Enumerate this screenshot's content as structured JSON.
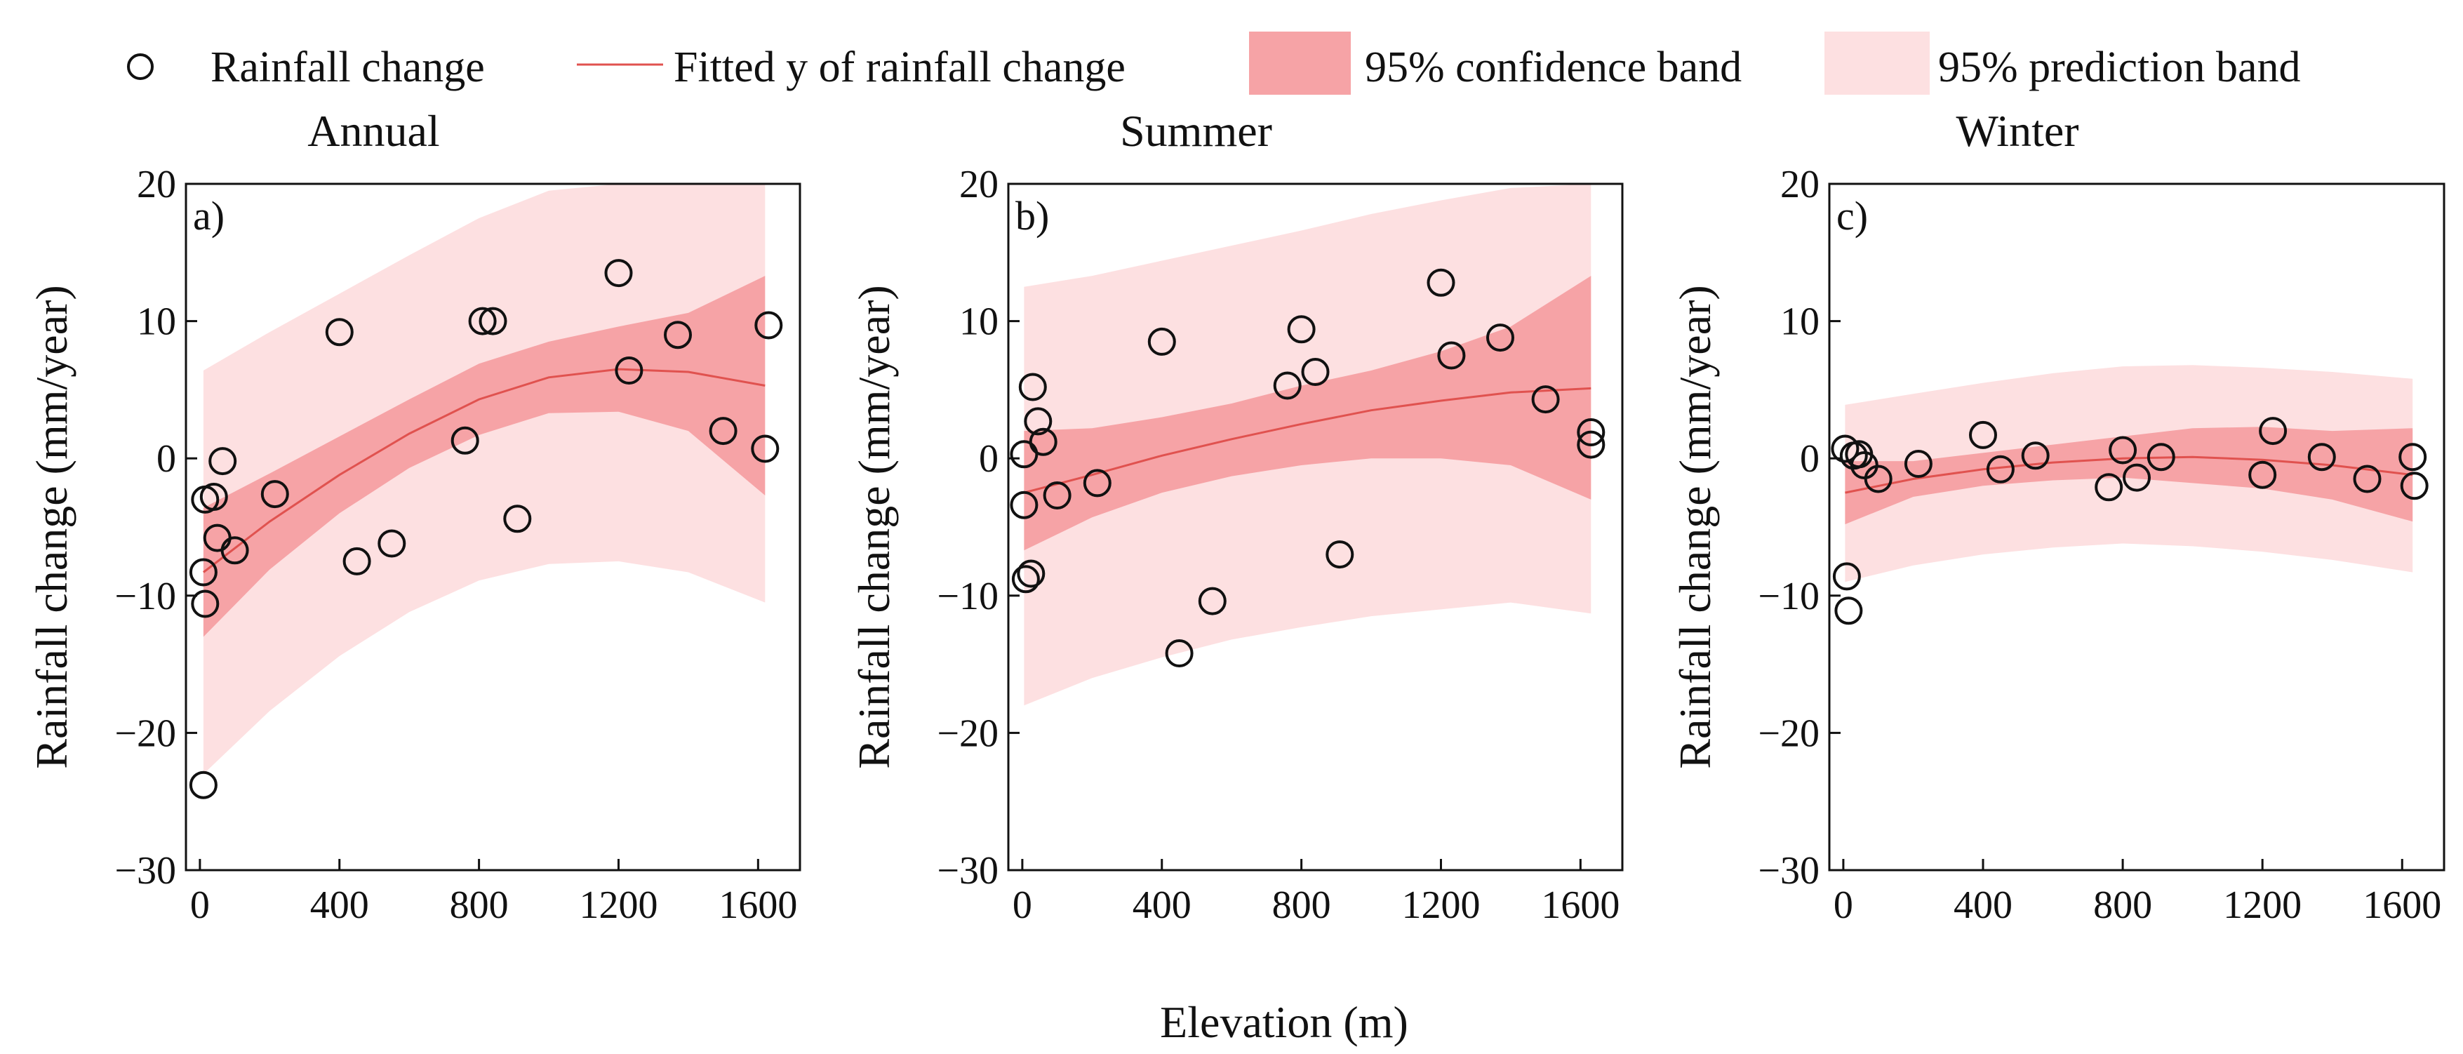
{
  "legend": {
    "points_label": "Rainfall change",
    "fit_label": "Fitted y of rainfall change",
    "confidence_label": "95% confidence band",
    "prediction_label": "95% prediction band"
  },
  "colors": {
    "fit": "#e0524f",
    "confidence": "#f6a3a6",
    "prediction": "#fde0e1",
    "marker": "#111111"
  },
  "xlabel": "Elevation (m)",
  "ylabel": "Rainfall change (mm/year)",
  "chart_data": [
    {
      "type": "scatter",
      "title": "Annual",
      "panel_label": "a)",
      "xlim": [
        -40,
        1720
      ],
      "ylim": [
        -30,
        20
      ],
      "xticks": [
        0,
        400,
        800,
        1200,
        1600
      ],
      "yticks": [
        -30,
        -20,
        -10,
        0,
        10,
        20
      ],
      "points": [
        [
          10,
          -23.8
        ],
        [
          10,
          -8.3
        ],
        [
          15,
          -10.6
        ],
        [
          15,
          -3.0
        ],
        [
          40,
          -2.8
        ],
        [
          50,
          -5.8
        ],
        [
          65,
          -0.2
        ],
        [
          100,
          -6.7
        ],
        [
          215,
          -2.6
        ],
        [
          400,
          9.2
        ],
        [
          450,
          -7.5
        ],
        [
          550,
          -6.2
        ],
        [
          760,
          1.3
        ],
        [
          810,
          10.0
        ],
        [
          840,
          10.0
        ],
        [
          910,
          -4.4
        ],
        [
          1200,
          13.5
        ],
        [
          1230,
          6.4
        ],
        [
          1370,
          9.0
        ],
        [
          1500,
          2.0
        ],
        [
          1620,
          0.7
        ],
        [
          1630,
          9.7
        ]
      ],
      "fit": [
        [
          10,
          -8.3
        ],
        [
          200,
          -4.6
        ],
        [
          400,
          -1.2
        ],
        [
          600,
          1.8
        ],
        [
          800,
          4.3
        ],
        [
          1000,
          5.9
        ],
        [
          1200,
          6.5
        ],
        [
          1400,
          6.3
        ],
        [
          1620,
          5.3
        ]
      ],
      "confidence": {
        "upper": [
          [
            10,
            -3.6
          ],
          [
            200,
            -1.1
          ],
          [
            400,
            1.6
          ],
          [
            600,
            4.3
          ],
          [
            800,
            6.9
          ],
          [
            1000,
            8.5
          ],
          [
            1200,
            9.6
          ],
          [
            1400,
            10.6
          ],
          [
            1620,
            13.3
          ]
        ],
        "lower": [
          [
            10,
            -13.0
          ],
          [
            200,
            -8.1
          ],
          [
            400,
            -4.0
          ],
          [
            600,
            -0.7
          ],
          [
            800,
            1.7
          ],
          [
            1000,
            3.3
          ],
          [
            1200,
            3.4
          ],
          [
            1400,
            2.0
          ],
          [
            1620,
            -2.7
          ]
        ]
      },
      "prediction": {
        "upper": [
          [
            10,
            6.4
          ],
          [
            200,
            9.2
          ],
          [
            400,
            12.0
          ],
          [
            600,
            14.8
          ],
          [
            800,
            17.5
          ],
          [
            1000,
            19.5
          ],
          [
            1200,
            20.0
          ],
          [
            1400,
            20.0
          ],
          [
            1620,
            20.0
          ]
        ],
        "lower": [
          [
            10,
            -23.0
          ],
          [
            200,
            -18.4
          ],
          [
            400,
            -14.4
          ],
          [
            600,
            -11.2
          ],
          [
            800,
            -8.9
          ],
          [
            1000,
            -7.7
          ],
          [
            1200,
            -7.5
          ],
          [
            1400,
            -8.3
          ],
          [
            1620,
            -10.5
          ]
        ]
      }
    },
    {
      "type": "scatter",
      "title": "Summer",
      "panel_label": "b)",
      "xlim": [
        -40,
        1720
      ],
      "ylim": [
        -30,
        20
      ],
      "xticks": [
        0,
        400,
        800,
        1200,
        1600
      ],
      "yticks": [
        -30,
        -20,
        -10,
        0,
        10,
        20
      ],
      "points": [
        [
          5,
          0.3
        ],
        [
          5,
          -3.4
        ],
        [
          10,
          -8.8
        ],
        [
          25,
          -8.4
        ],
        [
          30,
          5.2
        ],
        [
          45,
          2.7
        ],
        [
          60,
          1.2
        ],
        [
          100,
          -2.7
        ],
        [
          215,
          -1.8
        ],
        [
          400,
          8.5
        ],
        [
          450,
          -14.2
        ],
        [
          545,
          -10.4
        ],
        [
          760,
          5.3
        ],
        [
          800,
          9.4
        ],
        [
          840,
          6.3
        ],
        [
          910,
          -7.0
        ],
        [
          1200,
          12.8
        ],
        [
          1230,
          7.5
        ],
        [
          1370,
          8.8
        ],
        [
          1500,
          4.3
        ],
        [
          1630,
          1.0
        ],
        [
          1630,
          1.9
        ]
      ],
      "fit": [
        [
          5,
          -2.5
        ],
        [
          200,
          -1.2
        ],
        [
          400,
          0.2
        ],
        [
          600,
          1.4
        ],
        [
          800,
          2.5
        ],
        [
          1000,
          3.5
        ],
        [
          1200,
          4.2
        ],
        [
          1400,
          4.8
        ],
        [
          1630,
          5.1
        ]
      ],
      "confidence": {
        "upper": [
          [
            5,
            2.0
          ],
          [
            200,
            2.2
          ],
          [
            400,
            3.0
          ],
          [
            600,
            4.0
          ],
          [
            800,
            5.3
          ],
          [
            1000,
            6.4
          ],
          [
            1200,
            7.8
          ],
          [
            1400,
            9.6
          ],
          [
            1630,
            13.3
          ]
        ],
        "lower": [
          [
            5,
            -6.7
          ],
          [
            200,
            -4.3
          ],
          [
            400,
            -2.5
          ],
          [
            600,
            -1.3
          ],
          [
            800,
            -0.5
          ],
          [
            1000,
            0.0
          ],
          [
            1200,
            0.0
          ],
          [
            1400,
            -0.5
          ],
          [
            1630,
            -3.0
          ]
        ]
      },
      "prediction": {
        "upper": [
          [
            5,
            12.5
          ],
          [
            200,
            13.3
          ],
          [
            400,
            14.4
          ],
          [
            600,
            15.5
          ],
          [
            800,
            16.6
          ],
          [
            1000,
            17.8
          ],
          [
            1200,
            18.8
          ],
          [
            1400,
            19.7
          ],
          [
            1630,
            20.0
          ]
        ],
        "lower": [
          [
            5,
            -18.0
          ],
          [
            200,
            -16.0
          ],
          [
            400,
            -14.5
          ],
          [
            600,
            -13.2
          ],
          [
            800,
            -12.3
          ],
          [
            1000,
            -11.5
          ],
          [
            1200,
            -11.0
          ],
          [
            1400,
            -10.5
          ],
          [
            1630,
            -11.3
          ]
        ]
      }
    },
    {
      "type": "scatter",
      "title": "Winter",
      "panel_label": "c)",
      "xlim": [
        -40,
        1720
      ],
      "ylim": [
        -30,
        20
      ],
      "xticks": [
        0,
        400,
        800,
        1200,
        1600
      ],
      "yticks": [
        -30,
        -20,
        -10,
        0,
        10,
        20
      ],
      "points": [
        [
          5,
          0.7
        ],
        [
          10,
          -8.6
        ],
        [
          15,
          -11.1
        ],
        [
          30,
          0.2
        ],
        [
          45,
          0.3
        ],
        [
          60,
          -0.5
        ],
        [
          100,
          -1.5
        ],
        [
          215,
          -0.4
        ],
        [
          400,
          1.7
        ],
        [
          450,
          -0.8
        ],
        [
          550,
          0.2
        ],
        [
          760,
          -2.1
        ],
        [
          800,
          0.6
        ],
        [
          840,
          -1.4
        ],
        [
          910,
          0.1
        ],
        [
          1200,
          -1.2
        ],
        [
          1230,
          2.0
        ],
        [
          1370,
          0.1
        ],
        [
          1500,
          -1.5
        ],
        [
          1630,
          0.1
        ],
        [
          1635,
          -2.0
        ]
      ],
      "fit": [
        [
          5,
          -2.5
        ],
        [
          200,
          -1.5
        ],
        [
          400,
          -0.8
        ],
        [
          600,
          -0.3
        ],
        [
          800,
          0.0
        ],
        [
          1000,
          0.1
        ],
        [
          1200,
          -0.1
        ],
        [
          1400,
          -0.5
        ],
        [
          1630,
          -1.2
        ]
      ],
      "confidence": {
        "upper": [
          [
            5,
            -0.2
          ],
          [
            200,
            -0.2
          ],
          [
            400,
            0.4
          ],
          [
            600,
            1.0
          ],
          [
            800,
            1.6
          ],
          [
            1000,
            2.2
          ],
          [
            1200,
            2.3
          ],
          [
            1400,
            2.0
          ],
          [
            1630,
            2.2
          ]
        ],
        "lower": [
          [
            5,
            -4.8
          ],
          [
            200,
            -2.8
          ],
          [
            400,
            -2.0
          ],
          [
            600,
            -1.6
          ],
          [
            800,
            -1.4
          ],
          [
            1000,
            -1.8
          ],
          [
            1200,
            -2.2
          ],
          [
            1400,
            -3.0
          ],
          [
            1630,
            -4.6
          ]
        ]
      },
      "prediction": {
        "upper": [
          [
            5,
            3.9
          ],
          [
            200,
            4.7
          ],
          [
            400,
            5.5
          ],
          [
            600,
            6.2
          ],
          [
            800,
            6.7
          ],
          [
            1000,
            6.8
          ],
          [
            1200,
            6.6
          ],
          [
            1400,
            6.3
          ],
          [
            1630,
            5.8
          ]
        ],
        "lower": [
          [
            5,
            -9.0
          ],
          [
            200,
            -7.8
          ],
          [
            400,
            -7.0
          ],
          [
            600,
            -6.5
          ],
          [
            800,
            -6.2
          ],
          [
            1000,
            -6.4
          ],
          [
            1200,
            -6.8
          ],
          [
            1400,
            -7.4
          ],
          [
            1630,
            -8.3
          ]
        ]
      }
    }
  ]
}
